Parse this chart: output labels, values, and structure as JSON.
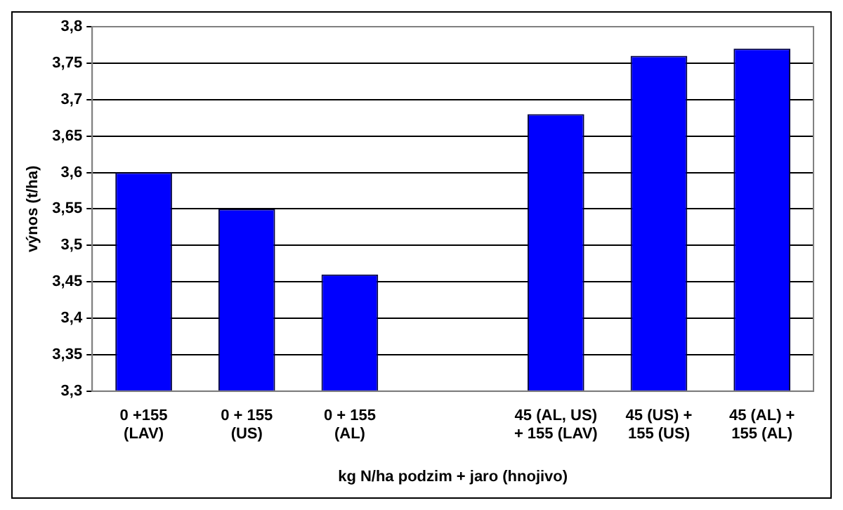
{
  "chart_data": {
    "type": "bar",
    "xlabel": "kg N/ha podzim + jaro (hnojivo)",
    "ylabel": "výnos (t/ha)",
    "categories": [
      "0 +155 (LAV)",
      "0 + 155 (US)",
      "0 + 155 (AL)",
      null,
      "45 (AL, US) + 155 (LAV)",
      "45 (US) + 155 (US)",
      "45 (AL) + 155 (AL)"
    ],
    "values": [
      3.6,
      3.55,
      3.46,
      null,
      3.68,
      3.76,
      3.77
    ],
    "color": "#0000ff",
    "ylim": [
      3.3,
      3.8
    ],
    "yticks": [
      {
        "value": 3.3,
        "label": "3,3"
      },
      {
        "value": 3.35,
        "label": "3,35"
      },
      {
        "value": 3.4,
        "label": "3,4"
      },
      {
        "value": 3.45,
        "label": "3,45"
      },
      {
        "value": 3.5,
        "label": "3,5"
      },
      {
        "value": 3.55,
        "label": "3,55"
      },
      {
        "value": 3.6,
        "label": "3,6"
      },
      {
        "value": 3.65,
        "label": "3,65"
      },
      {
        "value": 3.7,
        "label": "3,7"
      },
      {
        "value": 3.75,
        "label": "3,75"
      },
      {
        "value": 3.8,
        "label": "3,8"
      }
    ],
    "grid": "y",
    "legend": false
  }
}
